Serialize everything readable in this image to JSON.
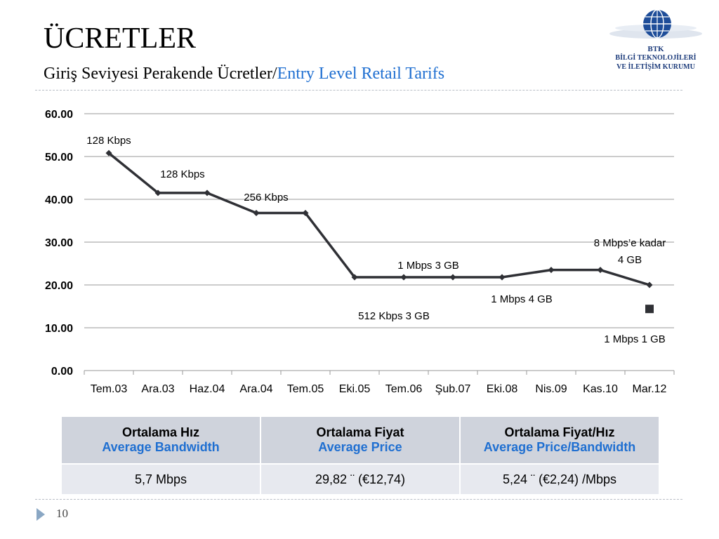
{
  "slide": {
    "title": "ÜCRETLER",
    "subtitle_tr": "Giriş Seviyesi Perakende Ücretler/",
    "subtitle_en": "Entry Level Retail Tarifs",
    "page_number": "10"
  },
  "logo": {
    "line1": "BTK",
    "line2": "BİLGİ TEKNOLOJİLERİ",
    "line3": "VE İLETİŞİM KURUMU"
  },
  "chart_data": {
    "type": "line",
    "categories": [
      "Tem.03",
      "Ara.03",
      "Haz.04",
      "Ara.04",
      "Tem.05",
      "Eki.05",
      "Tem.06",
      "Şub.07",
      "Eki.08",
      "Nis.09",
      "Kas.10",
      "Mar.12"
    ],
    "series": [
      {
        "values": [
          50.8,
          41.5,
          41.5,
          36.8,
          36.8,
          21.8,
          21.8,
          21.8,
          21.8,
          23.5,
          23.5,
          20.0
        ]
      },
      {
        "values": [
          null,
          null,
          null,
          null,
          null,
          null,
          null,
          null,
          null,
          null,
          null,
          14.4
        ],
        "marker": "square"
      }
    ],
    "ylim": [
      0,
      60
    ],
    "yticks": [
      "0.00",
      "10.00",
      "20.00",
      "30.00",
      "40.00",
      "50.00",
      "60.00"
    ],
    "grid": true,
    "line_color": "#2f3035",
    "annotations": [
      {
        "text": "128 Kbps",
        "at": 0
      },
      {
        "text": "128 Kbps",
        "at": 1.5
      },
      {
        "text": "256 Kbps",
        "at": 3.2
      },
      {
        "text": "1 Mbps 3 GB",
        "at": 6.5
      },
      {
        "text": "512 Kbps 3 GB",
        "at": 5.8
      },
      {
        "text": "1 Mbps 4 GB",
        "at": 8.4
      },
      {
        "text": "8 Mbps’e kadar",
        "at": 10.6
      },
      {
        "text": "4 GB",
        "at": 10.6
      },
      {
        "text": "1 Mbps 1 GB",
        "at": 10.7
      }
    ]
  },
  "table": {
    "headers": [
      {
        "tr": "Ortalama Hız",
        "en": "Average Bandwidth"
      },
      {
        "tr": "Ortalama Fiyat",
        "en": "Average Price"
      },
      {
        "tr": "Ortalama Fiyat/Hız",
        "en": "Average Price/Bandwidth"
      }
    ],
    "row": [
      "5,7 Mbps",
      "29,82 ¨ (€12,74)",
      "5,24 ¨ (€2,24) /Mbps"
    ]
  }
}
